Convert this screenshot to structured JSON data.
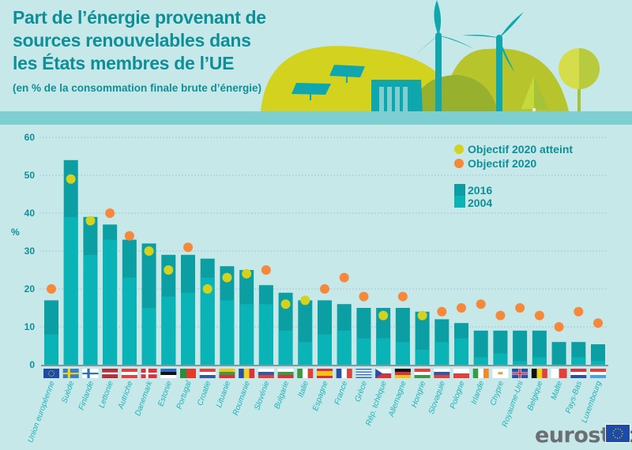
{
  "header": {
    "title_lines": [
      "Part de l’énergie provenant de",
      "sources renouvelables dans",
      "les États membres de l’UE"
    ],
    "subtitle": "(en % de la consommation finale brute d’énergie)"
  },
  "colors": {
    "background": "#c6e8e8",
    "band": "#7ecfd2",
    "bar_2016": "#0b9ea2",
    "bar_2004": "#0ab3b6",
    "target_met": "#d3d21e",
    "target": "#f5883a",
    "title": "#0e8f98",
    "label": "#1fb1bb"
  },
  "logo": {
    "text": "eurostat"
  },
  "chart_data": {
    "type": "bar",
    "title": "Part de l’énergie provenant de sources renouvelables dans les États membres de l’UE",
    "subtitle": "(en % de la consommation finale brute d’énergie)",
    "xlabel": "",
    "ylabel": "%",
    "ylim": [
      0,
      60
    ],
    "yticks": [
      "0",
      "10",
      "20",
      "30",
      "40",
      "50",
      "60"
    ],
    "grid": true,
    "legend_position": "top-right",
    "legend": [
      {
        "key": "target_met",
        "label": "Objectif 2020 atteint"
      },
      {
        "key": "target",
        "label": "Objectif 2020"
      },
      {
        "key": "bar_2016",
        "label": "2016"
      },
      {
        "key": "bar_2004",
        "label": "2004"
      }
    ],
    "categories": [
      "Union européenne",
      "Suède",
      "Finlande",
      "Lettonie",
      "Autriche",
      "Danemark",
      "Estonie",
      "Portugal",
      "Croatie",
      "Lituanie",
      "Roumanie",
      "Slovénie",
      "Bulgarie",
      "Italie",
      "Espagne",
      "France",
      "Grèce",
      "Rép. tchèque",
      "Allemagne",
      "Hongrie",
      "Slovaquie",
      "Pologne",
      "Irlande",
      "Chypre",
      "Royaume-Uni",
      "Belgique",
      "Malte",
      "Pays-Bas",
      "Luxembourg"
    ],
    "flags": [
      "eu",
      "se",
      "fi",
      "lv",
      "at",
      "dk",
      "ee",
      "pt",
      "hr",
      "lt",
      "ro",
      "si",
      "bg",
      "it",
      "es",
      "fr",
      "gr",
      "cz",
      "de",
      "hu",
      "sk",
      "pl",
      "ie",
      "cy",
      "uk",
      "be",
      "mt",
      "nl",
      "lu"
    ],
    "series": [
      {
        "name": "2016",
        "values": [
          17,
          54,
          39,
          37,
          33,
          32,
          29,
          29,
          28,
          26,
          25,
          21,
          19,
          17,
          17,
          16,
          15,
          15,
          15,
          14,
          12,
          11,
          9,
          9,
          9,
          9,
          6,
          6,
          5.4
        ]
      },
      {
        "name": "2004",
        "values": [
          8,
          39,
          29,
          33,
          23,
          15,
          18,
          19,
          23,
          17,
          16,
          16,
          9,
          6,
          8,
          9,
          7,
          7,
          6,
          4,
          6,
          7,
          2,
          3,
          1,
          2,
          0.1,
          2,
          1
        ]
      },
      {
        "name": "Objectif 2020",
        "values": [
          20,
          49,
          38,
          40,
          34,
          30,
          25,
          31,
          20,
          23,
          24,
          25,
          16,
          17,
          20,
          23,
          18,
          13,
          18,
          13,
          14,
          15,
          16,
          13,
          15,
          13,
          10,
          14,
          11
        ]
      }
    ],
    "target_met": [
      false,
      true,
      true,
      false,
      false,
      true,
      true,
      false,
      true,
      true,
      true,
      false,
      true,
      true,
      false,
      false,
      false,
      true,
      false,
      true,
      false,
      false,
      false,
      false,
      false,
      false,
      false,
      false,
      false
    ]
  }
}
